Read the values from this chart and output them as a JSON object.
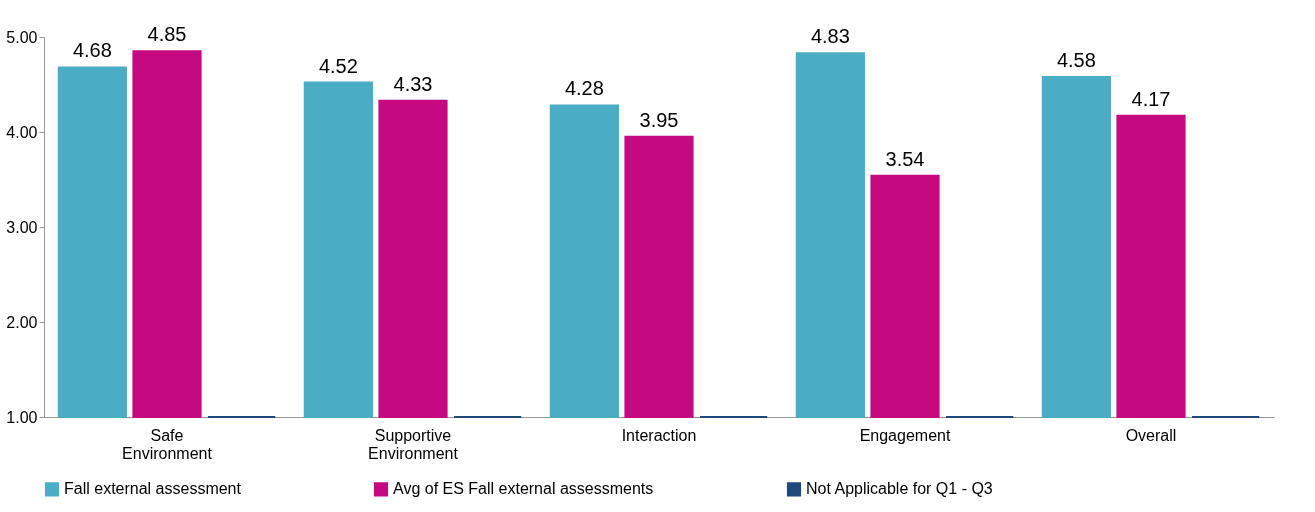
{
  "chart_data": {
    "type": "bar",
    "categories": [
      "Safe Environment",
      "Supportive Environment",
      "Interaction",
      "Engagement",
      "Overall"
    ],
    "series": [
      {
        "name": "Fall external assessment",
        "color": "#4bacc6",
        "values": [
          4.68,
          4.52,
          4.28,
          4.83,
          4.58
        ],
        "value_labels": [
          "4.68",
          "4.52",
          "4.28",
          "4.83",
          "4.58"
        ]
      },
      {
        "name": "Avg of ES Fall external assessments",
        "color": "#c50a81",
        "values": [
          4.85,
          4.33,
          3.95,
          3.54,
          4.17
        ],
        "value_labels": [
          "4.85",
          "4.33",
          "3.95",
          "3.54",
          "4.17"
        ]
      },
      {
        "name": "Not Applicable for Q1 - Q3",
        "color": "#1f497d",
        "values": [
          1.0,
          1.0,
          1.0,
          1.0,
          1.0
        ],
        "value_labels": [
          null,
          null,
          null,
          null,
          null
        ]
      }
    ],
    "ylim": [
      1.0,
      5.0
    ],
    "yticks": [
      {
        "value": 1,
        "label": "1.00"
      },
      {
        "value": 2,
        "label": "2.00"
      },
      {
        "value": 3,
        "label": "3.00"
      },
      {
        "value": 4,
        "label": "4.00"
      },
      {
        "value": 5,
        "label": "5.00"
      }
    ],
    "grid": false,
    "legend": "bottom"
  }
}
